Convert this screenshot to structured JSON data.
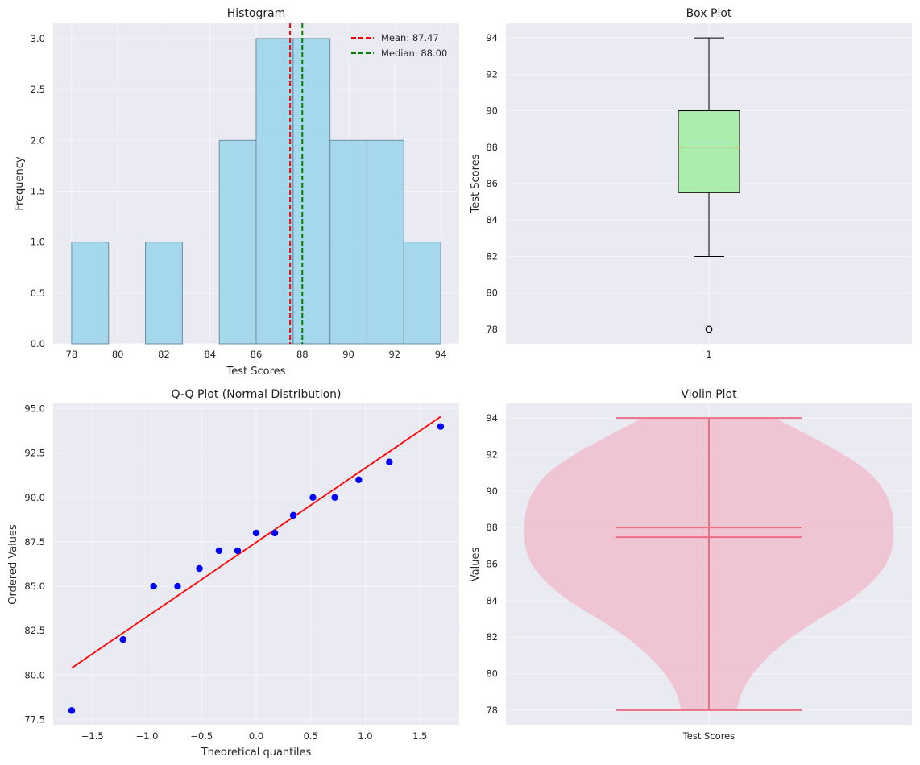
{
  "chart_data": [
    {
      "type": "bar",
      "subtype": "histogram",
      "title": "Histogram",
      "xlabel": "Test Scores",
      "ylabel": "Frequency",
      "xlim": [
        77.2,
        94.8
      ],
      "ylim": [
        0,
        3.15
      ],
      "xticks": [
        "78",
        "80",
        "82",
        "84",
        "86",
        "88",
        "90",
        "92",
        "94"
      ],
      "yticks": [
        "0.0",
        "0.5",
        "1.0",
        "1.5",
        "2.0",
        "2.5",
        "3.0"
      ],
      "bins": [
        {
          "start": 78.0,
          "end": 79.6,
          "count": 1
        },
        {
          "start": 79.6,
          "end": 81.2,
          "count": 0
        },
        {
          "start": 81.2,
          "end": 82.8,
          "count": 1
        },
        {
          "start": 82.8,
          "end": 84.4,
          "count": 0
        },
        {
          "start": 84.4,
          "end": 86.0,
          "count": 2
        },
        {
          "start": 86.0,
          "end": 87.6,
          "count": 3
        },
        {
          "start": 87.6,
          "end": 89.2,
          "count": 3
        },
        {
          "start": 89.2,
          "end": 90.8,
          "count": 2
        },
        {
          "start": 90.8,
          "end": 92.4,
          "count": 2
        },
        {
          "start": 92.4,
          "end": 94.0,
          "count": 1
        }
      ],
      "bar_color": "#87ceeb",
      "lines": [
        {
          "label": "Mean: 87.47",
          "x": 87.47,
          "color": "#ff0000"
        },
        {
          "label": "Median: 88.00",
          "x": 88.0,
          "color": "#008000"
        }
      ],
      "legend": "top-right",
      "grid": true
    },
    {
      "type": "box",
      "title": "Box Plot",
      "xlabel": "",
      "ylabel": "Test Scores",
      "ylim": [
        77.2,
        94.8
      ],
      "xticks": [
        "1"
      ],
      "yticks": [
        "78",
        "80",
        "82",
        "84",
        "86",
        "88",
        "90",
        "92",
        "94"
      ],
      "whisker_low": 82,
      "q1": 85.5,
      "median": 88,
      "q3": 90,
      "whisker_high": 94,
      "outliers": [
        78
      ],
      "box_color": "#90ee90",
      "median_color": "#d6a14c",
      "grid": true
    },
    {
      "type": "scatter",
      "title": "Q-Q Plot (Normal Distribution)",
      "xlabel": "Theoretical quantiles",
      "ylabel": "Ordered Values",
      "xlim": [
        -1.86,
        1.86
      ],
      "ylim": [
        77.2,
        95.3
      ],
      "xticks": [
        "−1.5",
        "−1.0",
        "−0.5",
        "0.0",
        "0.5",
        "1.0",
        "1.5"
      ],
      "yticks": [
        "77.5",
        "80.0",
        "82.5",
        "85.0",
        "87.5",
        "90.0",
        "92.5",
        "95.0"
      ],
      "x": [
        -1.69,
        -1.22,
        -0.94,
        -0.72,
        -0.52,
        -0.34,
        -0.17,
        0.0,
        0.17,
        0.34,
        0.52,
        0.72,
        0.94,
        1.22,
        1.69
      ],
      "y": [
        78,
        82,
        85,
        85,
        86,
        87,
        87,
        88,
        88,
        89,
        90,
        90,
        91,
        92,
        94
      ],
      "fit_line": {
        "x": [
          -1.69,
          1.69
        ],
        "y": [
          80.4,
          94.55
        ],
        "color": "#ff0000"
      },
      "point_color": "#0000ff",
      "grid": true
    },
    {
      "type": "violin",
      "title": "Violin Plot",
      "xlabel": "",
      "ylabel": "Values",
      "ylim": [
        77.2,
        94.8
      ],
      "xticks": [
        "Test Scores"
      ],
      "yticks": [
        "78",
        "80",
        "82",
        "84",
        "86",
        "88",
        "90",
        "92",
        "94"
      ],
      "min": 78,
      "max": 94,
      "mean": 87.47,
      "median": 88,
      "density_profile": [
        {
          "y": 78.0,
          "w": 0.15
        },
        {
          "y": 79.0,
          "w": 0.18
        },
        {
          "y": 80.0,
          "w": 0.24
        },
        {
          "y": 81.0,
          "w": 0.33
        },
        {
          "y": 82.0,
          "w": 0.45
        },
        {
          "y": 83.0,
          "w": 0.6
        },
        {
          "y": 84.0,
          "w": 0.76
        },
        {
          "y": 85.0,
          "w": 0.88
        },
        {
          "y": 86.0,
          "w": 0.96
        },
        {
          "y": 87.0,
          "w": 0.995
        },
        {
          "y": 88.0,
          "w": 1.0
        },
        {
          "y": 89.0,
          "w": 0.99
        },
        {
          "y": 90.0,
          "w": 0.95
        },
        {
          "y": 91.0,
          "w": 0.87
        },
        {
          "y": 92.0,
          "w": 0.73
        },
        {
          "y": 93.0,
          "w": 0.55
        },
        {
          "y": 94.0,
          "w": 0.36
        }
      ],
      "body_color": "#f2b8c8",
      "line_color": "#ec6f86",
      "grid": true
    }
  ]
}
